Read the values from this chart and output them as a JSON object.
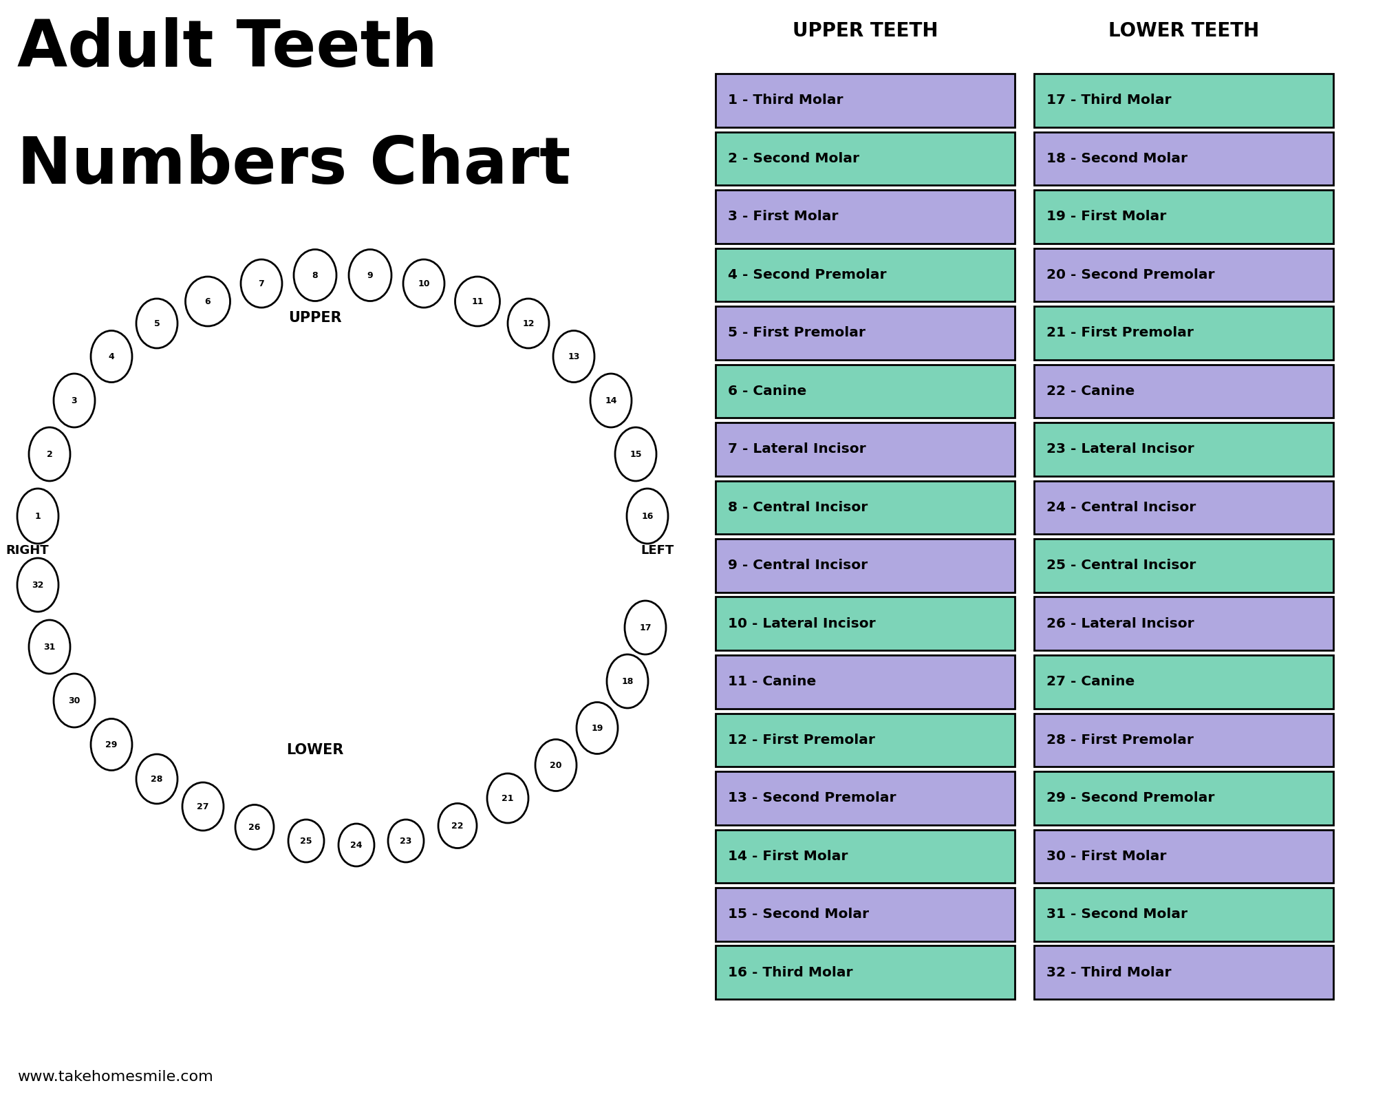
{
  "title_line1": "Adult Teeth",
  "title_line2": "Numbers Chart",
  "bg_color": "#ffffff",
  "upper_header": "UPPER TEETH",
  "lower_header": "LOWER TEETH",
  "upper_teeth": [
    {
      "num": 1,
      "name": "Third Molar",
      "color": "#b0a8e0"
    },
    {
      "num": 2,
      "name": "Second Molar",
      "color": "#7dd4b8"
    },
    {
      "num": 3,
      "name": "First Molar",
      "color": "#b0a8e0"
    },
    {
      "num": 4,
      "name": "Second Premolar",
      "color": "#7dd4b8"
    },
    {
      "num": 5,
      "name": "First Premolar",
      "color": "#b0a8e0"
    },
    {
      "num": 6,
      "name": "Canine",
      "color": "#7dd4b8"
    },
    {
      "num": 7,
      "name": "Lateral Incisor",
      "color": "#b0a8e0"
    },
    {
      "num": 8,
      "name": "Central Incisor",
      "color": "#7dd4b8"
    },
    {
      "num": 9,
      "name": "Central Incisor",
      "color": "#b0a8e0"
    },
    {
      "num": 10,
      "name": "Lateral Incisor",
      "color": "#7dd4b8"
    },
    {
      "num": 11,
      "name": "Canine",
      "color": "#b0a8e0"
    },
    {
      "num": 12,
      "name": "First Premolar",
      "color": "#7dd4b8"
    },
    {
      "num": 13,
      "name": "Second Premolar",
      "color": "#b0a8e0"
    },
    {
      "num": 14,
      "name": "First Molar",
      "color": "#7dd4b8"
    },
    {
      "num": 15,
      "name": "Second Molar",
      "color": "#b0a8e0"
    },
    {
      "num": 16,
      "name": "Third Molar",
      "color": "#7dd4b8"
    }
  ],
  "lower_teeth": [
    {
      "num": 17,
      "name": "Third Molar",
      "color": "#7dd4b8"
    },
    {
      "num": 18,
      "name": "Second Molar",
      "color": "#b0a8e0"
    },
    {
      "num": 19,
      "name": "First Molar",
      "color": "#7dd4b8"
    },
    {
      "num": 20,
      "name": "Second Premolar",
      "color": "#b0a8e0"
    },
    {
      "num": 21,
      "name": "First Premolar",
      "color": "#7dd4b8"
    },
    {
      "num": 22,
      "name": "Canine",
      "color": "#b0a8e0"
    },
    {
      "num": 23,
      "name": "Lateral Incisor",
      "color": "#7dd4b8"
    },
    {
      "num": 24,
      "name": "Central Incisor",
      "color": "#b0a8e0"
    },
    {
      "num": 25,
      "name": "Central Incisor",
      "color": "#7dd4b8"
    },
    {
      "num": 26,
      "name": "Lateral Incisor",
      "color": "#b0a8e0"
    },
    {
      "num": 27,
      "name": "Canine",
      "color": "#7dd4b8"
    },
    {
      "num": 28,
      "name": "First Premolar",
      "color": "#b0a8e0"
    },
    {
      "num": 29,
      "name": "Second Premolar",
      "color": "#7dd4b8"
    },
    {
      "num": 30,
      "name": "First Molar",
      "color": "#b0a8e0"
    },
    {
      "num": 31,
      "name": "Second Molar",
      "color": "#7dd4b8"
    },
    {
      "num": 32,
      "name": "Third Molar",
      "color": "#b0a8e0"
    }
  ],
  "border_color": "#000000",
  "text_color": "#000000",
  "website": "www.takehomesmile.com",
  "upper_arch": [
    [
      1,
      0.55,
      8.5,
      0.6,
      0.8
    ],
    [
      2,
      0.72,
      9.4,
      0.6,
      0.78
    ],
    [
      3,
      1.08,
      10.18,
      0.6,
      0.78
    ],
    [
      4,
      1.62,
      10.82,
      0.6,
      0.75
    ],
    [
      5,
      2.28,
      11.3,
      0.6,
      0.72
    ],
    [
      6,
      3.02,
      11.62,
      0.65,
      0.72
    ],
    [
      7,
      3.8,
      11.88,
      0.6,
      0.7
    ],
    [
      8,
      4.58,
      12.0,
      0.62,
      0.75
    ],
    [
      9,
      5.38,
      12.0,
      0.62,
      0.75
    ],
    [
      10,
      6.16,
      11.88,
      0.6,
      0.7
    ],
    [
      11,
      6.94,
      11.62,
      0.65,
      0.72
    ],
    [
      12,
      7.68,
      11.3,
      0.6,
      0.72
    ],
    [
      13,
      8.34,
      10.82,
      0.6,
      0.75
    ],
    [
      14,
      8.88,
      10.18,
      0.6,
      0.78
    ],
    [
      15,
      9.24,
      9.4,
      0.6,
      0.78
    ],
    [
      16,
      9.41,
      8.5,
      0.6,
      0.8
    ]
  ],
  "lower_arch": [
    [
      32,
      0.55,
      7.5,
      0.6,
      0.78
    ],
    [
      31,
      0.72,
      6.6,
      0.6,
      0.78
    ],
    [
      30,
      1.08,
      5.82,
      0.6,
      0.78
    ],
    [
      29,
      1.62,
      5.18,
      0.6,
      0.75
    ],
    [
      28,
      2.28,
      4.68,
      0.6,
      0.72
    ],
    [
      27,
      2.95,
      4.28,
      0.6,
      0.7
    ],
    [
      26,
      3.7,
      3.98,
      0.56,
      0.65
    ],
    [
      25,
      4.45,
      3.78,
      0.52,
      0.62
    ],
    [
      24,
      5.18,
      3.72,
      0.52,
      0.62
    ],
    [
      23,
      5.9,
      3.78,
      0.52,
      0.62
    ],
    [
      22,
      6.65,
      4.0,
      0.56,
      0.65
    ],
    [
      21,
      7.38,
      4.4,
      0.6,
      0.72
    ],
    [
      20,
      8.08,
      4.88,
      0.6,
      0.75
    ],
    [
      19,
      8.68,
      5.42,
      0.6,
      0.75
    ],
    [
      18,
      9.12,
      6.1,
      0.6,
      0.78
    ],
    [
      17,
      9.38,
      6.88,
      0.6,
      0.78
    ]
  ]
}
